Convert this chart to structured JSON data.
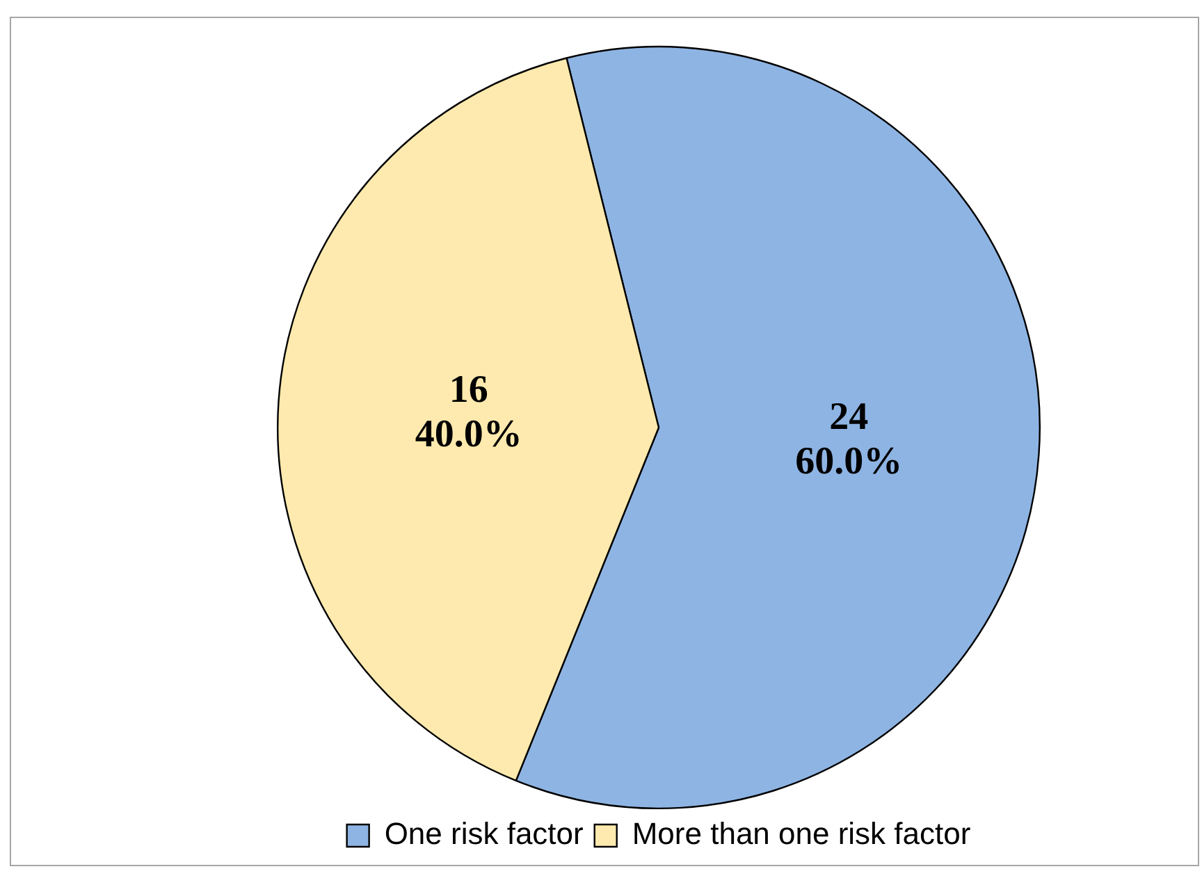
{
  "chart_data": {
    "type": "pie",
    "categories": [
      "One risk factor",
      "More than one risk factor"
    ],
    "values": [
      24,
      16
    ],
    "colors": [
      "#8eb4e3",
      "#feeaae"
    ],
    "value_labels": [
      "24\n60.0%",
      "16\n40.0%"
    ],
    "legend": "bottom"
  }
}
